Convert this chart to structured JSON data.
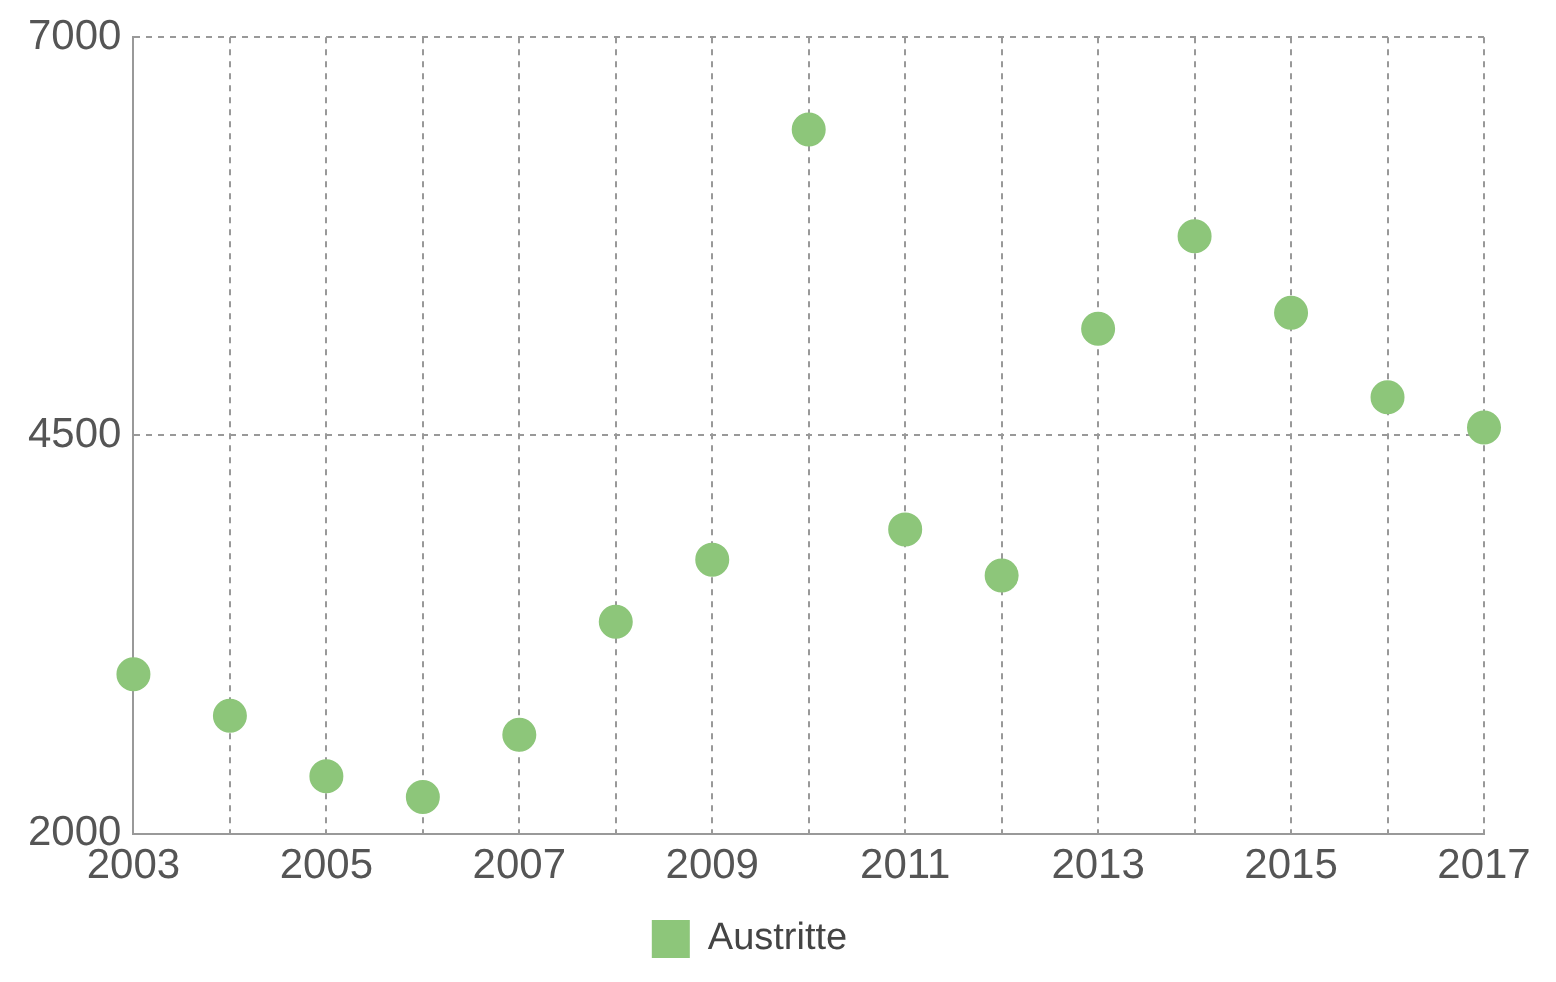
{
  "chart_data": {
    "type": "scatter",
    "x": [
      2003,
      2004,
      2005,
      2006,
      2007,
      2008,
      2009,
      2010,
      2011,
      2012,
      2013,
      2014,
      2015,
      2016,
      2017
    ],
    "series": [
      {
        "name": "Austritte",
        "color": "#8dc67a",
        "values": [
          3000,
          2740,
          2360,
          2230,
          2620,
          3330,
          3720,
          6420,
          3910,
          3620,
          5170,
          5750,
          5270,
          4740,
          4550
        ]
      }
    ],
    "xlim": [
      2003,
      2017
    ],
    "xticks": [
      2003,
      {
        "value": 2004,
        "label": null
      },
      2005,
      {
        "value": 2006,
        "label": null
      },
      2007,
      {
        "value": 2008,
        "label": null
      },
      2009,
      {
        "value": 2010,
        "label": null
      },
      2011,
      {
        "value": 2012,
        "label": null
      },
      2013,
      {
        "value": 2014,
        "label": null
      },
      2015,
      {
        "value": 2016,
        "label": null
      },
      2017
    ],
    "ylim": [
      2000,
      7000
    ],
    "yticks": [
      2000,
      4500,
      7000
    ],
    "grid": true,
    "legend": "bottom",
    "marker": "circle"
  }
}
